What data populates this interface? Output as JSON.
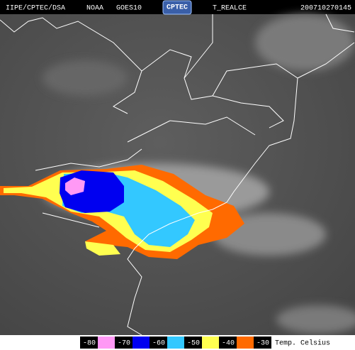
{
  "header": {
    "source": "IIPE/CPTEC/DSA",
    "agency": "NOAA",
    "satellite": "GOES10",
    "logo": "CPTEC",
    "product": "T_REALCE",
    "timestamp": "200710270145"
  },
  "legend": {
    "labels": [
      "-80",
      "-70",
      "-60",
      "-50",
      "-40",
      "-30"
    ],
    "colors": [
      "#ff99f5",
      "#0000f0",
      "#33c8ff",
      "#ffff50",
      "#ff6a00"
    ],
    "unit": "Temp. Celsius"
  }
}
